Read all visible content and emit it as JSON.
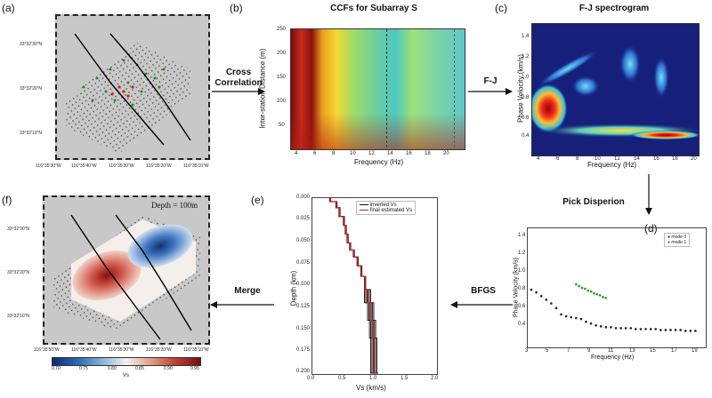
{
  "panels": {
    "a": {
      "label": "(a)",
      "lat_ticks": [
        "33°32'30\"N",
        "33°32'20\"N",
        "33°32'10\"N"
      ],
      "lon_ticks": [
        "116°35'30\"W",
        "116°35'40\"W",
        "116°35'30\"W",
        "116°35'20\"W",
        "116°35'10\"W"
      ]
    },
    "b": {
      "label": "(b)",
      "title": "CCFs for Subarray S",
      "xlabel": "Frequency (Hz)",
      "ylabel": "Inter-station Distance (m)",
      "xticks": [
        "4",
        "6",
        "8",
        "10",
        "12",
        "14",
        "16",
        "18",
        "20"
      ],
      "yticks": [
        "250",
        "200",
        "150",
        "100",
        "50"
      ]
    },
    "c": {
      "label": "(c)",
      "title": "F-J spectrogram",
      "xlabel": "Frequency (Hz)",
      "ylabel": "Phase Velocity (km/s)",
      "xticks": [
        "4",
        "6",
        "8",
        "10",
        "12",
        "14",
        "16",
        "18",
        "20"
      ],
      "yticks": [
        "1.4",
        "1.2",
        "1.0",
        "0.8",
        "0.6",
        "0.4"
      ]
    },
    "d": {
      "label": "(d)",
      "xlabel": "Frequency (Hz)",
      "ylabel": "Phase Velocity (km/s)",
      "xticks": [
        "3",
        "5",
        "7",
        "9",
        "11",
        "13",
        "15",
        "17",
        "19"
      ],
      "yticks": [
        "1.4",
        "1.2",
        "1.0",
        "0.8",
        "0.6",
        "0.4"
      ],
      "legend": [
        "mode 0",
        "mode 1"
      ]
    },
    "e": {
      "label": "(e)",
      "xlabel": "Vs (km/s)",
      "ylabel": "Depth (km)",
      "xticks": [
        "0.0",
        "0.5",
        "1.0",
        "1.5",
        "2.0"
      ],
      "yticks": [
        "0.000",
        "0.025",
        "0.050",
        "0.075",
        "0.100",
        "0.125",
        "0.150",
        "0.175",
        "0.200"
      ],
      "legend": [
        "inverted Vs",
        "final estimated Vs"
      ]
    },
    "f": {
      "label": "(f)",
      "depth_text": "Depth = 100m",
      "lat_ticks": [
        "33°32'30\"N",
        "33°32'20\"N",
        "33°32'10\"N"
      ],
      "lon_ticks": [
        "116°35'50\"W",
        "116°35'40\"W",
        "116°35'30\"W",
        "116°35'20\"W",
        "116°35'10\"W"
      ],
      "colorbar_label": "Vs",
      "colorbar_ticks": [
        "0.70",
        "0.75",
        "0.80",
        "0.85",
        "0.90",
        "0.95"
      ]
    }
  },
  "flow": {
    "cross_correlation": "Cross\nCorrelation",
    "fj": "F-J",
    "pick": "Pick Disperion",
    "bfgs": "BFGS",
    "merge": "Merge"
  },
  "colors": {
    "arrow": "#111111",
    "mode0": "#222222",
    "mode1": "#1a9a1a",
    "inverted": "#111111",
    "final": "#c0282d"
  },
  "chart_data": [
    {
      "type": "scatter",
      "panel": "d",
      "xlim": [
        3,
        20
      ],
      "ylim": [
        0.2,
        1.5
      ],
      "series": [
        {
          "name": "mode 0",
          "x": [
            3.0,
            3.5,
            4.0,
            4.5,
            5.0,
            5.5,
            6.0,
            6.5,
            7.0,
            7.5,
            8.0,
            8.5,
            9.0,
            9.5,
            10.0,
            10.5,
            11.0,
            11.5,
            12.0,
            12.5,
            13.0,
            13.5,
            14.0,
            14.5,
            15.0,
            15.5,
            16.0,
            16.5,
            17.0,
            17.5,
            18.0,
            18.5,
            19.0,
            19.5
          ],
          "y": [
            0.82,
            0.79,
            0.75,
            0.71,
            0.67,
            0.62,
            0.55,
            0.53,
            0.52,
            0.51,
            0.5,
            0.47,
            0.45,
            0.43,
            0.42,
            0.41,
            0.41,
            0.4,
            0.4,
            0.4,
            0.4,
            0.39,
            0.39,
            0.39,
            0.39,
            0.39,
            0.38,
            0.38,
            0.38,
            0.38,
            0.38,
            0.37,
            0.37,
            0.37
          ]
        },
        {
          "name": "mode 1",
          "x": [
            7.5,
            7.8,
            8.1,
            8.4,
            8.7,
            9.0,
            9.3,
            9.6,
            9.9,
            10.2,
            10.5
          ],
          "y": [
            0.88,
            0.86,
            0.84,
            0.83,
            0.81,
            0.8,
            0.78,
            0.77,
            0.76,
            0.74,
            0.73
          ]
        }
      ]
    },
    {
      "type": "line",
      "panel": "e",
      "xlim": [
        0,
        2.0
      ],
      "ylim": [
        0.2,
        0.0
      ],
      "series": [
        {
          "name": "final estimated Vs",
          "vs": [
            0.3,
            0.4,
            0.45,
            0.52,
            0.55,
            0.58,
            0.62,
            0.68,
            0.74,
            0.8,
            0.86,
            0.9,
            0.95,
            0.98,
            1.0,
            1.02
          ],
          "depth": [
            0.0,
            0.005,
            0.012,
            0.022,
            0.032,
            0.042,
            0.052,
            0.06,
            0.068,
            0.078,
            0.09,
            0.105,
            0.12,
            0.14,
            0.16,
            0.2
          ]
        }
      ]
    }
  ]
}
